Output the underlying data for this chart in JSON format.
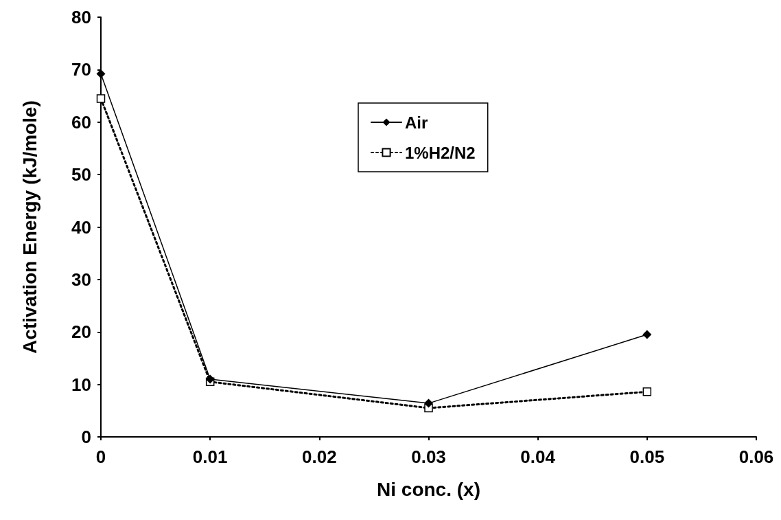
{
  "chart_data": {
    "type": "line",
    "xlabel": "Ni conc. (x)",
    "ylabel": "Activation Energy (kJ/mole)",
    "xlim": [
      0,
      0.06
    ],
    "xticks": [
      0,
      0.01,
      0.02,
      0.03,
      0.04,
      0.05,
      0.06
    ],
    "ylim": [
      0,
      80
    ],
    "yticks": [
      0,
      10,
      20,
      30,
      40,
      50,
      60,
      70,
      80
    ],
    "grid": false,
    "legend": "top",
    "series": [
      {
        "name": "Air",
        "color": "#000000",
        "x": [
          0,
          0.01,
          0.03,
          0.05
        ],
        "values": [
          69.2,
          11,
          6.4,
          19.5
        ],
        "marker": "diamond",
        "line_style": "solid"
      },
      {
        "name": "1%H2/N2",
        "color": "#000000",
        "x": [
          0,
          0.01,
          0.03,
          0.05
        ],
        "values": [
          64.5,
          10.5,
          5.5,
          8.6
        ],
        "marker": "square",
        "line_style": "dotted"
      }
    ]
  }
}
